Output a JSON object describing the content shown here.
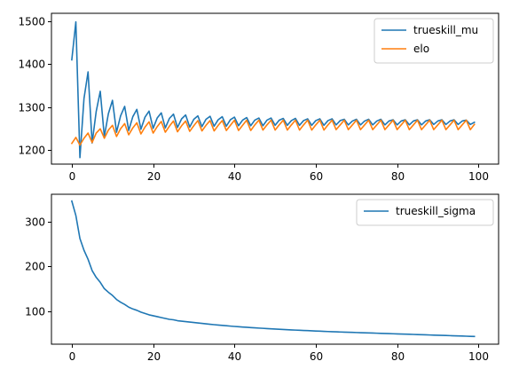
{
  "chart_data": [
    {
      "type": "line",
      "title": "",
      "xlabel": "",
      "ylabel": "",
      "xlim": [
        -5,
        104.95
      ],
      "ylim": [
        1168,
        1518
      ],
      "xticks": [
        0,
        20,
        40,
        60,
        80,
        100
      ],
      "xtick_labels": [
        "0",
        "20",
        "40",
        "60",
        "80",
        "100"
      ],
      "yticks": [
        1200,
        1300,
        1400,
        1500
      ],
      "ytick_labels": [
        "1200",
        "1300",
        "1400",
        "1500"
      ],
      "grid": false,
      "legend_position": "top-right",
      "series": [
        {
          "name": "trueskill_mu",
          "color": "#1f77b4",
          "x": [
            0,
            1,
            2,
            3,
            4,
            5,
            6,
            7,
            8,
            9,
            10,
            11,
            12,
            13,
            14,
            15,
            16,
            17,
            18,
            19,
            20,
            21,
            22,
            23,
            24,
            25,
            26,
            27,
            28,
            29,
            30,
            31,
            32,
            33,
            34,
            35,
            36,
            37,
            38,
            39,
            40,
            41,
            42,
            43,
            44,
            45,
            46,
            47,
            48,
            49,
            50,
            51,
            52,
            53,
            54,
            55,
            56,
            57,
            58,
            59,
            60,
            61,
            62,
            63,
            64,
            65,
            66,
            67,
            68,
            69,
            70,
            71,
            72,
            73,
            74,
            75,
            76,
            77,
            78,
            79,
            80,
            81,
            82,
            83,
            84,
            85,
            86,
            87,
            88,
            89,
            90,
            91,
            92,
            93,
            94,
            95,
            96,
            97,
            98,
            99
          ],
          "y": [
            1410,
            1498,
            1183,
            1320,
            1382,
            1217,
            1290,
            1337,
            1232,
            1285,
            1316,
            1242,
            1280,
            1302,
            1246,
            1278,
            1295,
            1249,
            1277,
            1291,
            1251,
            1275,
            1287,
            1252,
            1274,
            1284,
            1253,
            1273,
            1282,
            1254,
            1272,
            1280,
            1255,
            1272,
            1279,
            1256,
            1271,
            1278,
            1256,
            1271,
            1277,
            1257,
            1270,
            1276,
            1257,
            1270,
            1275,
            1257,
            1270,
            1275,
            1258,
            1270,
            1274,
            1258,
            1269,
            1274,
            1258,
            1269,
            1273,
            1258,
            1269,
            1273,
            1258,
            1269,
            1273,
            1259,
            1269,
            1272,
            1259,
            1268,
            1272,
            1259,
            1268,
            1272,
            1259,
            1268,
            1272,
            1259,
            1268,
            1271,
            1259,
            1268,
            1271,
            1259,
            1268,
            1271,
            1259,
            1268,
            1271,
            1260,
            1268,
            1271,
            1260,
            1268,
            1271,
            1260,
            1268,
            1270,
            1260,
            1265
          ]
        },
        {
          "name": "elo",
          "color": "#ff7f0e",
          "x": [
            0,
            1,
            2,
            3,
            4,
            5,
            6,
            7,
            8,
            9,
            10,
            11,
            12,
            13,
            14,
            15,
            16,
            17,
            18,
            19,
            20,
            21,
            22,
            23,
            24,
            25,
            26,
            27,
            28,
            29,
            30,
            31,
            32,
            33,
            34,
            35,
            36,
            37,
            38,
            39,
            40,
            41,
            42,
            43,
            44,
            45,
            46,
            47,
            48,
            49,
            50,
            51,
            52,
            53,
            54,
            55,
            56,
            57,
            58,
            59,
            60,
            61,
            62,
            63,
            64,
            65,
            66,
            67,
            68,
            69,
            70,
            71,
            72,
            73,
            74,
            75,
            76,
            77,
            78,
            79,
            80,
            81,
            82,
            83,
            84,
            85,
            86,
            87,
            88,
            89,
            90,
            91,
            92,
            93,
            94,
            95,
            96,
            97,
            98,
            99
          ],
          "y": [
            1216,
            1230,
            1212,
            1228,
            1240,
            1218,
            1240,
            1250,
            1228,
            1247,
            1258,
            1232,
            1250,
            1262,
            1236,
            1252,
            1264,
            1238,
            1254,
            1266,
            1240,
            1255,
            1267,
            1242,
            1256,
            1268,
            1243,
            1257,
            1268,
            1244,
            1257,
            1269,
            1245,
            1258,
            1269,
            1245,
            1258,
            1269,
            1246,
            1258,
            1270,
            1246,
            1258,
            1270,
            1246,
            1259,
            1270,
            1247,
            1259,
            1270,
            1247,
            1259,
            1270,
            1247,
            1259,
            1270,
            1247,
            1259,
            1270,
            1247,
            1259,
            1270,
            1247,
            1259,
            1270,
            1248,
            1259,
            1270,
            1248,
            1259,
            1270,
            1248,
            1259,
            1270,
            1248,
            1259,
            1270,
            1248,
            1259,
            1270,
            1248,
            1259,
            1270,
            1248,
            1259,
            1270,
            1248,
            1259,
            1270,
            1248,
            1259,
            1270,
            1248,
            1259,
            1270,
            1248,
            1259,
            1270,
            1248,
            1260
          ]
        }
      ]
    },
    {
      "type": "line",
      "title": "",
      "xlabel": "",
      "ylabel": "",
      "xlim": [
        -5,
        104.95
      ],
      "ylim": [
        28,
        360
      ],
      "xticks": [
        0,
        20,
        40,
        60,
        80,
        100
      ],
      "xtick_labels": [
        "0",
        "20",
        "40",
        "60",
        "80",
        "100"
      ],
      "yticks": [
        100,
        200,
        300
      ],
      "ytick_labels": [
        "100",
        "200",
        "300"
      ],
      "grid": false,
      "legend_position": "top-right",
      "series": [
        {
          "name": "trueskill_sigma",
          "color": "#1f77b4",
          "x": [
            0,
            1,
            2,
            3,
            4,
            5,
            6,
            7,
            8,
            9,
            10,
            11,
            12,
            13,
            14,
            15,
            16,
            17,
            18,
            19,
            20,
            21,
            22,
            23,
            24,
            25,
            26,
            27,
            28,
            29,
            30,
            31,
            32,
            33,
            34,
            35,
            36,
            37,
            38,
            39,
            40,
            41,
            42,
            43,
            44,
            45,
            46,
            47,
            48,
            49,
            50,
            51,
            52,
            53,
            54,
            55,
            56,
            57,
            58,
            59,
            60,
            61,
            62,
            63,
            64,
            65,
            66,
            67,
            68,
            69,
            70,
            71,
            72,
            73,
            74,
            75,
            76,
            77,
            78,
            79,
            80,
            81,
            82,
            83,
            84,
            85,
            86,
            87,
            88,
            89,
            90,
            91,
            92,
            93,
            94,
            95,
            96,
            97,
            98,
            99
          ],
          "y": [
            345,
            313,
            262,
            236,
            216,
            191,
            176,
            165,
            151,
            143,
            136,
            127,
            121,
            116,
            110,
            106,
            103,
            99,
            96,
            93,
            91,
            89,
            87,
            85,
            83,
            82,
            80,
            79,
            78,
            77,
            76,
            75,
            74,
            73,
            72,
            71.2,
            70.4,
            69.6,
            68.8,
            68.0,
            67.3,
            66.6,
            66.0,
            65.4,
            64.8,
            64.2,
            63.6,
            63.1,
            62.6,
            62.1,
            61.6,
            61.1,
            60.6,
            60.1,
            59.6,
            59.2,
            58.8,
            58.4,
            58.0,
            57.6,
            57.2,
            56.8,
            56.4,
            56.0,
            55.6,
            55.3,
            55.0,
            54.7,
            54.4,
            54.1,
            53.8,
            53.5,
            53.2,
            52.9,
            52.6,
            52.3,
            52.0,
            51.7,
            51.4,
            51.1,
            50.8,
            50.5,
            50.2,
            49.9,
            49.6,
            49.3,
            49.0,
            48.7,
            48.4,
            48.1,
            47.8,
            47.5,
            47.2,
            46.9,
            46.6,
            46.3,
            46.0,
            45.7,
            45.4,
            45.1
          ]
        }
      ]
    }
  ]
}
